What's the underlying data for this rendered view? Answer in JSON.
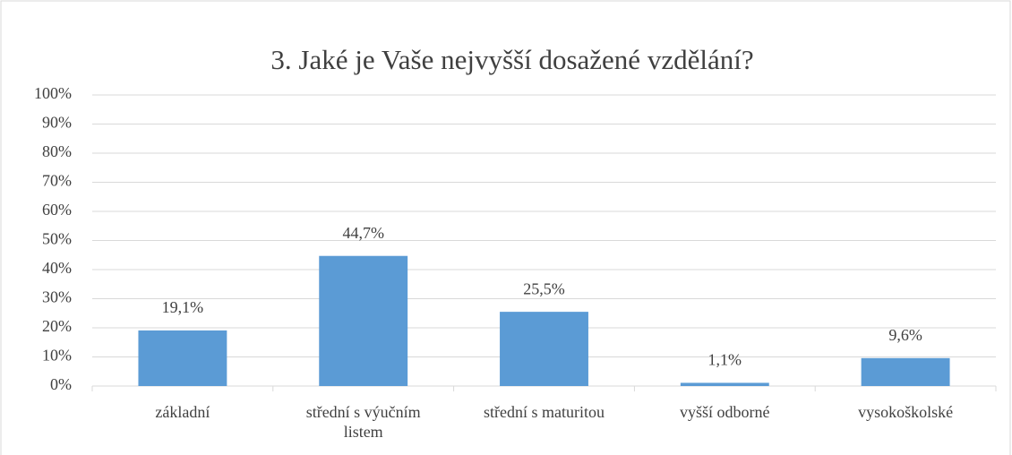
{
  "chart_data": {
    "type": "bar",
    "title": "3. Jaké je Vaše nejvyšší dosažené vzdělání?",
    "categories": [
      "základní",
      "střední s výučním listem",
      "střední s maturitou",
      "vyšší odborné",
      "vysokoškolské"
    ],
    "values": [
      19.1,
      44.7,
      25.5,
      1.1,
      9.6
    ],
    "value_labels": [
      "19,1%",
      "44,7%",
      "25,5%",
      "1,1%",
      "9,6%"
    ],
    "color": "#5b9bd5",
    "ylim": [
      0,
      100
    ],
    "yticks": [
      {
        "value": 0,
        "label": "0%"
      },
      {
        "value": 10,
        "label": "10%"
      },
      {
        "value": 20,
        "label": "20%"
      },
      {
        "value": 30,
        "label": "30%"
      },
      {
        "value": 40,
        "label": "40%"
      },
      {
        "value": 50,
        "label": "50%"
      },
      {
        "value": 60,
        "label": "60%"
      },
      {
        "value": 70,
        "label": "70%"
      },
      {
        "value": 80,
        "label": "80%"
      },
      {
        "value": 90,
        "label": "90%"
      },
      {
        "value": 100,
        "label": "100%"
      }
    ],
    "grid": true
  }
}
